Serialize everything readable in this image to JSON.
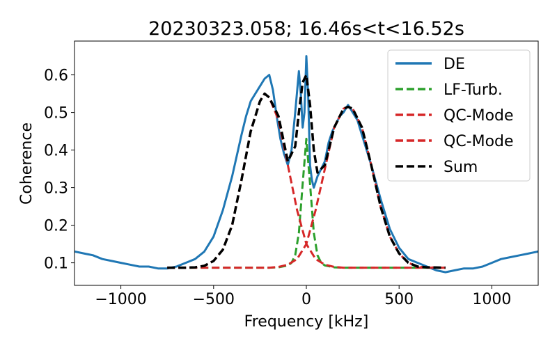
{
  "chart_data": {
    "type": "line",
    "title": "20230323.058; 16.46s<t<16.52s",
    "xlabel": "Frequency [kHz]",
    "ylabel": "Coherence",
    "xlim": [
      -1250,
      1250
    ],
    "ylim": [
      0.04,
      0.69
    ],
    "xticks": [
      -1000,
      -500,
      0,
      500,
      1000
    ],
    "xtick_labels": [
      "−1000",
      "−500",
      "0",
      "500",
      "1000"
    ],
    "yticks": [
      0.1,
      0.2,
      0.3,
      0.4,
      0.5,
      0.6
    ],
    "ytick_labels": [
      "0.1",
      "0.2",
      "0.3",
      "0.4",
      "0.5",
      "0.6"
    ],
    "grid": false,
    "legend_position": "top-right",
    "series": [
      {
        "name": "DE",
        "color": "#1f77b4",
        "style": "solid",
        "x": [
          -1250,
          -1200,
          -1150,
          -1100,
          -1050,
          -1000,
          -950,
          -900,
          -850,
          -800,
          -750,
          -700,
          -650,
          -600,
          -550,
          -500,
          -450,
          -400,
          -350,
          -325,
          -300,
          -275,
          -250,
          -225,
          -200,
          -180,
          -160,
          -140,
          -120,
          -100,
          -80,
          -60,
          -40,
          -30,
          -20,
          -10,
          0,
          10,
          20,
          30,
          40,
          60,
          80,
          100,
          120,
          140,
          160,
          180,
          200,
          225,
          250,
          275,
          300,
          325,
          350,
          400,
          450,
          500,
          550,
          600,
          650,
          700,
          750,
          800,
          850,
          900,
          950,
          1000,
          1050,
          1100,
          1150,
          1200,
          1250
        ],
        "y": [
          0.13,
          0.125,
          0.12,
          0.11,
          0.105,
          0.1,
          0.095,
          0.09,
          0.09,
          0.085,
          0.085,
          0.09,
          0.1,
          0.11,
          0.13,
          0.17,
          0.24,
          0.33,
          0.44,
          0.49,
          0.53,
          0.55,
          0.57,
          0.59,
          0.6,
          0.56,
          0.49,
          0.43,
          0.39,
          0.36,
          0.4,
          0.5,
          0.61,
          0.55,
          0.46,
          0.5,
          0.65,
          0.54,
          0.36,
          0.32,
          0.3,
          0.33,
          0.35,
          0.37,
          0.42,
          0.45,
          0.47,
          0.49,
          0.5,
          0.52,
          0.5,
          0.48,
          0.44,
          0.4,
          0.36,
          0.27,
          0.19,
          0.14,
          0.11,
          0.1,
          0.09,
          0.08,
          0.075,
          0.08,
          0.085,
          0.085,
          0.09,
          0.1,
          0.11,
          0.115,
          0.12,
          0.125,
          0.13
        ]
      },
      {
        "name": "LF-Turb.",
        "color": "#2ca02c",
        "style": "dashed",
        "x": [
          -750,
          -200,
          -150,
          -100,
          -80,
          -60,
          -40,
          -20,
          0,
          20,
          40,
          60,
          80,
          100,
          150,
          200,
          750
        ],
        "y": [
          0.087,
          0.087,
          0.088,
          0.093,
          0.1,
          0.12,
          0.18,
          0.31,
          0.43,
          0.31,
          0.18,
          0.12,
          0.1,
          0.093,
          0.088,
          0.087,
          0.087
        ]
      },
      {
        "name": "QC-Mode",
        "color": "#d62728",
        "style": "dashed",
        "x": [
          -750,
          -650,
          -600,
          -550,
          -500,
          -450,
          -400,
          -350,
          -300,
          -250,
          -225,
          -200,
          -150,
          -100,
          -50,
          0,
          50,
          100,
          150,
          200,
          300,
          400,
          500,
          600,
          750
        ],
        "y": [
          0.087,
          0.087,
          0.088,
          0.092,
          0.105,
          0.135,
          0.2,
          0.32,
          0.45,
          0.53,
          0.55,
          0.54,
          0.48,
          0.36,
          0.24,
          0.15,
          0.11,
          0.095,
          0.089,
          0.087,
          0.087,
          0.087,
          0.087,
          0.087,
          0.087
        ]
      },
      {
        "name": "QC-Mode",
        "color": "#d62728",
        "style": "dashed",
        "x": [
          -750,
          -600,
          -500,
          -400,
          -300,
          -200,
          -150,
          -100,
          -50,
          0,
          50,
          100,
          150,
          200,
          225,
          250,
          300,
          350,
          400,
          450,
          500,
          550,
          600,
          650,
          750
        ],
        "y": [
          0.087,
          0.087,
          0.087,
          0.087,
          0.087,
          0.087,
          0.089,
          0.095,
          0.11,
          0.15,
          0.24,
          0.35,
          0.46,
          0.51,
          0.515,
          0.51,
          0.46,
          0.36,
          0.25,
          0.17,
          0.125,
          0.1,
          0.09,
          0.088,
          0.087
        ]
      },
      {
        "name": "Sum",
        "color": "#000000",
        "style": "dashed",
        "x": [
          -750,
          -650,
          -600,
          -550,
          -500,
          -450,
          -400,
          -350,
          -300,
          -250,
          -225,
          -200,
          -150,
          -100,
          -60,
          -40,
          -20,
          0,
          20,
          40,
          60,
          100,
          150,
          200,
          225,
          250,
          300,
          350,
          400,
          450,
          500,
          550,
          600,
          650,
          750
        ],
        "y": [
          0.087,
          0.087,
          0.088,
          0.092,
          0.105,
          0.135,
          0.2,
          0.32,
          0.45,
          0.53,
          0.55,
          0.54,
          0.49,
          0.37,
          0.41,
          0.5,
          0.58,
          0.6,
          0.52,
          0.4,
          0.34,
          0.36,
          0.46,
          0.51,
          0.515,
          0.51,
          0.46,
          0.36,
          0.25,
          0.17,
          0.125,
          0.1,
          0.09,
          0.088,
          0.087
        ]
      }
    ]
  }
}
